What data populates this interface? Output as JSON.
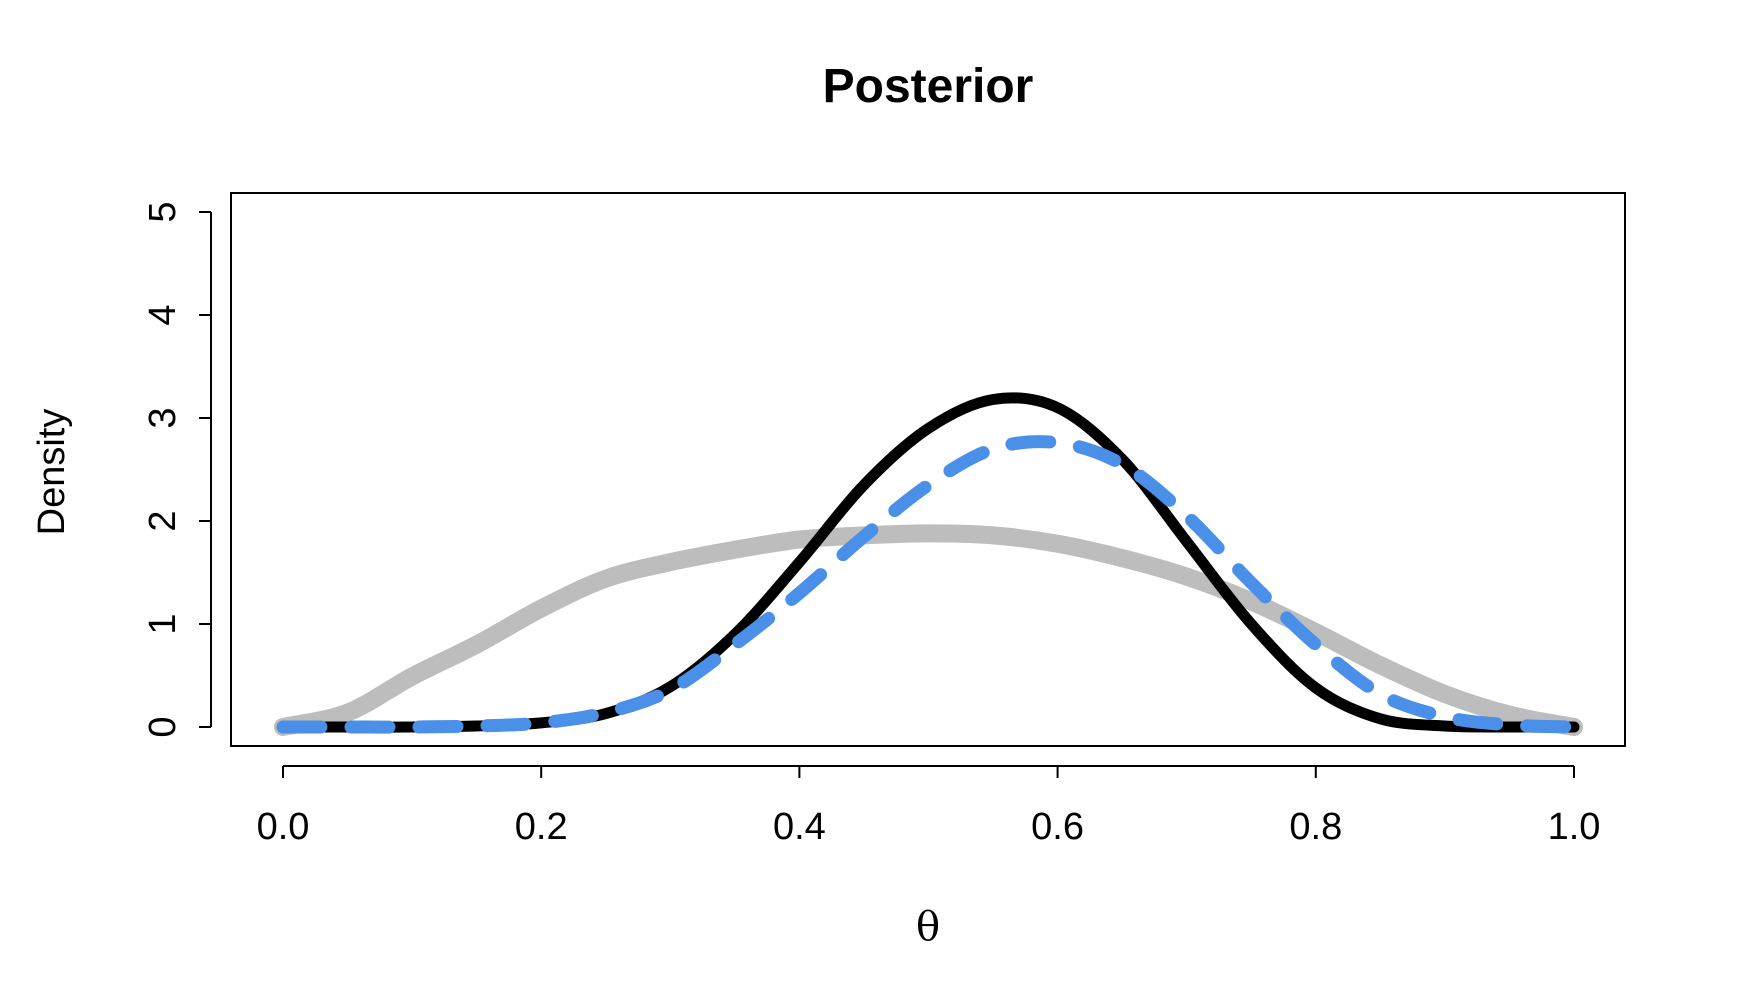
{
  "chart_data": {
    "type": "line",
    "title": "Posterior",
    "xlabel": "θ",
    "ylabel": "Density",
    "xlim": [
      0,
      1
    ],
    "ylim": [
      0,
      5
    ],
    "x_ticks": [
      {
        "value": 0.0,
        "label": "0.0"
      },
      {
        "value": 0.2,
        "label": "0.2"
      },
      {
        "value": 0.4,
        "label": "0.4"
      },
      {
        "value": 0.6,
        "label": "0.6"
      },
      {
        "value": 0.8,
        "label": "0.8"
      },
      {
        "value": 1.0,
        "label": "1.0"
      }
    ],
    "y_ticks": [
      {
        "value": 0,
        "label": "0"
      },
      {
        "value": 1,
        "label": "1"
      },
      {
        "value": 2,
        "label": "2"
      },
      {
        "value": 3,
        "label": "3"
      },
      {
        "value": 4,
        "label": "4"
      },
      {
        "value": 5,
        "label": "5"
      }
    ],
    "grid": false,
    "legend": "none",
    "x": [
      0.0,
      0.05,
      0.1,
      0.15,
      0.2,
      0.25,
      0.3,
      0.35,
      0.4,
      0.45,
      0.5,
      0.55,
      0.6,
      0.65,
      0.7,
      0.75,
      0.8,
      0.85,
      0.9,
      0.95,
      1.0
    ],
    "series": [
      {
        "color": "#bdbdbd",
        "style": "solid-thick",
        "values": [
          0.0,
          0.14,
          0.49,
          0.8,
          1.15,
          1.44,
          1.6,
          1.72,
          1.82,
          1.86,
          1.88,
          1.86,
          1.78,
          1.64,
          1.46,
          1.22,
          0.92,
          0.6,
          0.32,
          0.12,
          0.0
        ]
      },
      {
        "color": "#000000",
        "style": "solid",
        "values": [
          0.0,
          0.0,
          0.0,
          0.01,
          0.04,
          0.13,
          0.39,
          0.9,
          1.6,
          2.35,
          2.9,
          3.18,
          3.1,
          2.6,
          1.8,
          1.0,
          0.38,
          0.08,
          0.01,
          0.0,
          0.0
        ]
      },
      {
        "color": "#4a90e8",
        "style": "dashed",
        "values": [
          0.0,
          0.0,
          0.0,
          0.01,
          0.04,
          0.14,
          0.36,
          0.8,
          1.3,
          1.85,
          2.35,
          2.7,
          2.76,
          2.55,
          2.05,
          1.4,
          0.8,
          0.32,
          0.1,
          0.02,
          0.0
        ]
      }
    ]
  }
}
